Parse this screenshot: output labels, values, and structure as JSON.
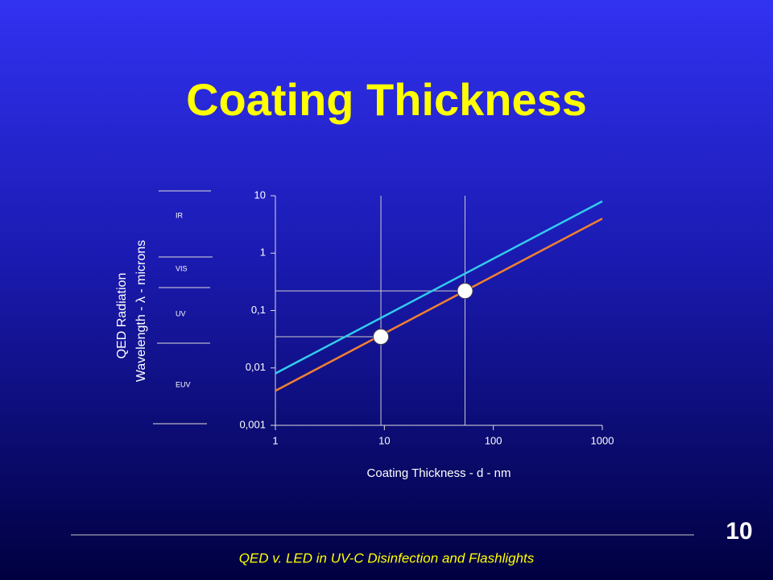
{
  "title": "Coating Thickness",
  "footer": "QED v. LED in UV-C Disinfection and Flashlights",
  "page_number": "10",
  "chart_data": {
    "type": "line",
    "xlabel": "Coating Thickness - d - nm",
    "ylabel": [
      "QED Radiation",
      "Wavelength - λ - microns"
    ],
    "bands": [
      "IR",
      "VIS",
      "UV",
      "EUV"
    ],
    "x": [
      1,
      1000
    ],
    "series": [
      {
        "color": "#33ccee",
        "values": [
          0.008,
          8
        ]
      },
      {
        "color": "#f08030",
        "values": [
          0.004,
          4
        ]
      }
    ],
    "markers": [
      {
        "x": 9.3,
        "y": 0.035
      },
      {
        "x": 55,
        "y": 0.22
      }
    ],
    "xlim": [
      1,
      1000
    ],
    "ylim": [
      0.001,
      10
    ],
    "xticks": [
      1,
      10,
      100,
      1000
    ],
    "yticks": [
      {
        "value": 0.001,
        "label": "0,001"
      },
      {
        "value": 0.01,
        "label": "0,01"
      },
      {
        "value": 0.1,
        "label": "0,1"
      },
      1,
      10
    ],
    "log_x": true,
    "log_y": true
  }
}
